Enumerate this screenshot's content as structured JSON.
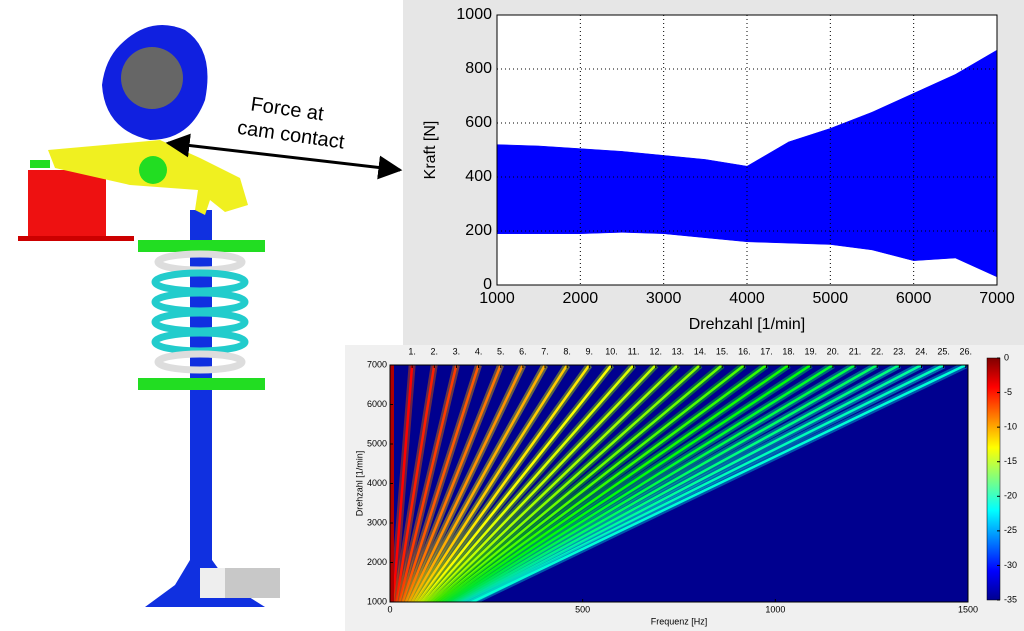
{
  "annotation": [
    "Force at",
    "cam contact"
  ],
  "chart_data": [
    {
      "type": "range-area",
      "xlabel": "Drehzahl [1/min]",
      "ylabel": "Kraft [N]",
      "x": [
        1000,
        1500,
        2000,
        2500,
        3000,
        3500,
        4000,
        4500,
        5000,
        5500,
        6000,
        6500,
        7000
      ],
      "series": [
        {
          "color": "#0000ff",
          "values": [
            520,
            515,
            505,
            495,
            480,
            465,
            440,
            530,
            580,
            640,
            710,
            780,
            870
          ]
        },
        {
          "color": "#0000ff",
          "values": [
            190,
            190,
            190,
            195,
            190,
            175,
            160,
            155,
            150,
            130,
            90,
            100,
            30
          ]
        }
      ],
      "xlim": [
        1000,
        7000
      ],
      "ylim": [
        0,
        1000
      ],
      "xticks": [
        1000,
        2000,
        3000,
        4000,
        5000,
        6000,
        7000
      ],
      "yticks": [
        0,
        200,
        400,
        600,
        800,
        1000
      ],
      "grid": true
    },
    {
      "type": "heatmap",
      "xlabel": "Frequenz [Hz]",
      "ylabel": "Drehzahl [1/min]",
      "xlim": [
        0,
        1500
      ],
      "ylim": [
        1000,
        7000
      ],
      "xticks": [
        0,
        500,
        1000,
        1500
      ],
      "yticks": [
        1000,
        2000,
        3000,
        4000,
        5000,
        6000,
        7000
      ],
      "x2lim": [
        0,
        26.1
      ],
      "x2ticks": [
        {
          "value": 1,
          "label": "1."
        },
        {
          "value": 2,
          "label": "2."
        },
        {
          "value": 3,
          "label": "3."
        },
        {
          "value": 4,
          "label": "4."
        },
        {
          "value": 5,
          "label": "5."
        },
        {
          "value": 6,
          "label": "6."
        },
        {
          "value": 7,
          "label": "7."
        },
        {
          "value": 8,
          "label": "8."
        },
        {
          "value": 9,
          "label": "9."
        },
        {
          "value": 10,
          "label": "10."
        },
        {
          "value": 11,
          "label": "11."
        },
        {
          "value": 12,
          "label": "12."
        },
        {
          "value": 13,
          "label": "13."
        },
        {
          "value": 14,
          "label": "14."
        },
        {
          "value": 15,
          "label": "15."
        },
        {
          "value": 16,
          "label": "16."
        },
        {
          "value": 17,
          "label": "17."
        },
        {
          "value": 18,
          "label": "18."
        },
        {
          "value": 19,
          "label": "19."
        },
        {
          "value": 20,
          "label": "20."
        },
        {
          "value": 21,
          "label": "21."
        },
        {
          "value": 22,
          "label": "22."
        },
        {
          "value": 23,
          "label": "23."
        },
        {
          "value": 24,
          "label": "24."
        },
        {
          "value": 25,
          "label": "25."
        },
        {
          "value": 26,
          "label": "26."
        }
      ],
      "colorbar": {
        "clim": [
          -35,
          0
        ],
        "ticks": [
          0,
          -5,
          -10,
          -15,
          -20,
          -25,
          -30,
          -35
        ]
      }
    }
  ]
}
